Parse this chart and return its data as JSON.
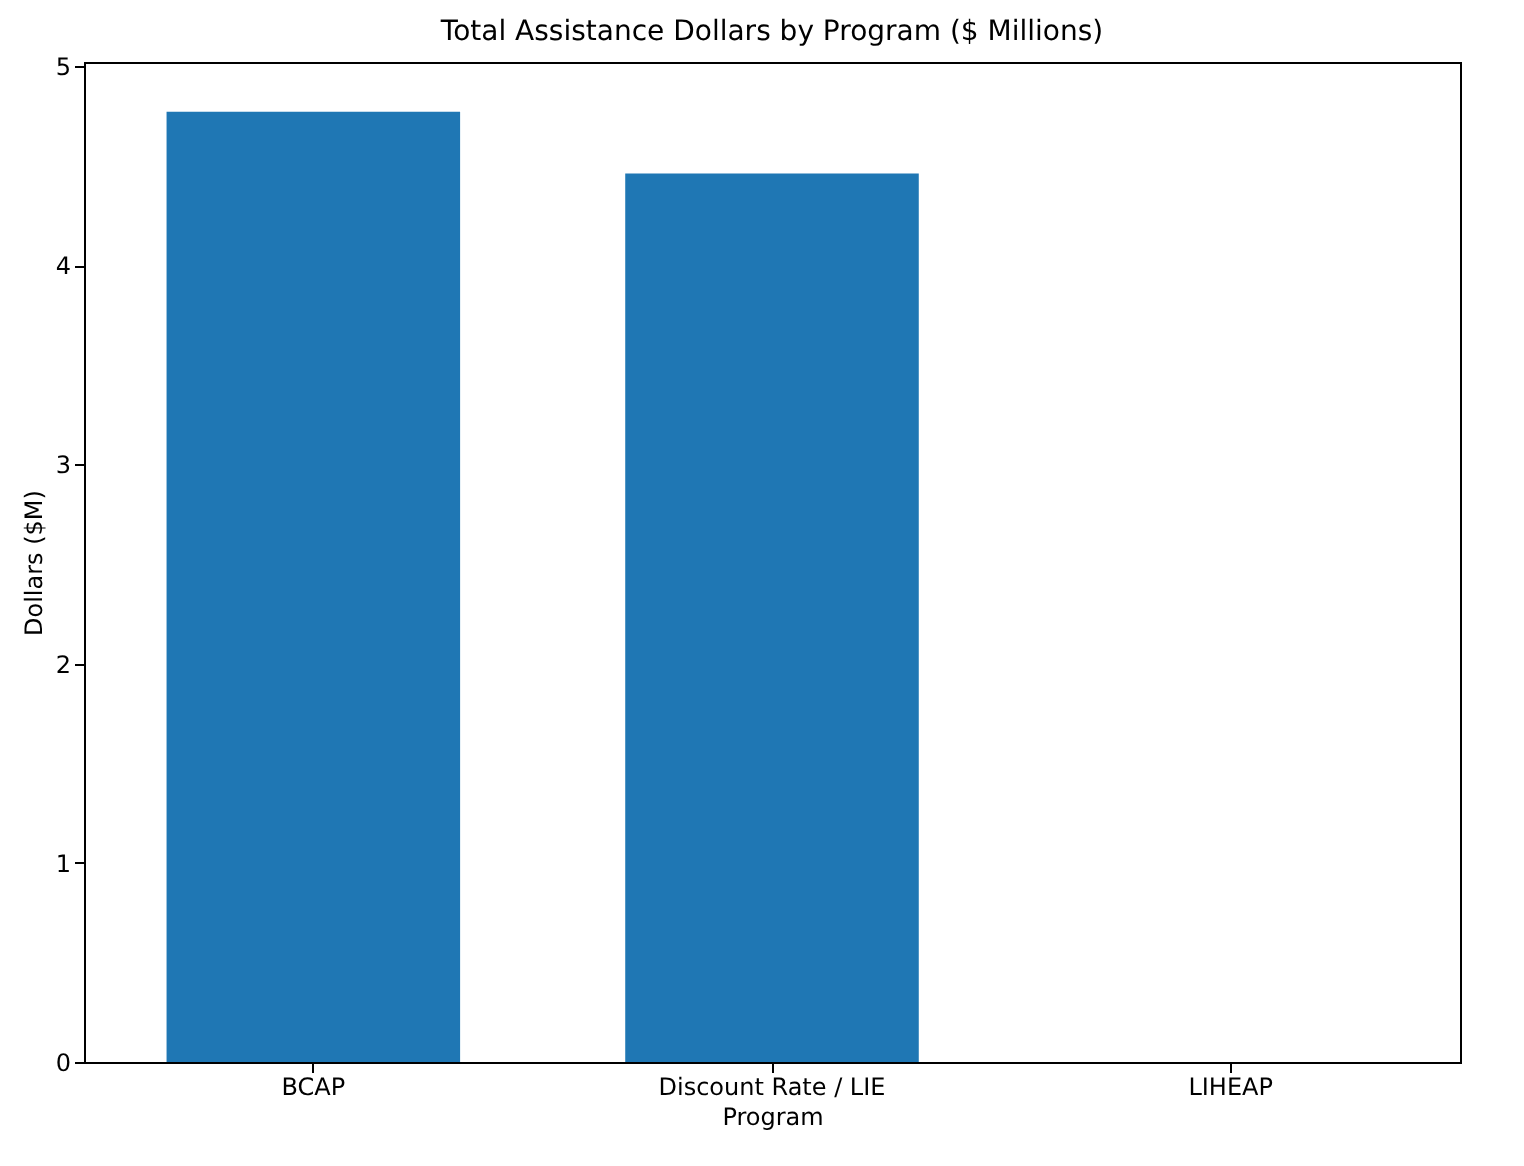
{
  "chart_data": {
    "type": "bar",
    "title": "Total Assistance Dollars by Program ($ Millions)",
    "xlabel": "Program",
    "ylabel": "Dollars ($M)",
    "categories": [
      "BCAP",
      "Discount Rate / LIE",
      "LIHEAP"
    ],
    "values": [
      4.77,
      4.46,
      0
    ],
    "color": "#1f77b4",
    "ylim": [
      0,
      5.02
    ],
    "yticks": [
      0,
      1,
      2,
      3,
      4,
      5
    ],
    "grid": false
  }
}
